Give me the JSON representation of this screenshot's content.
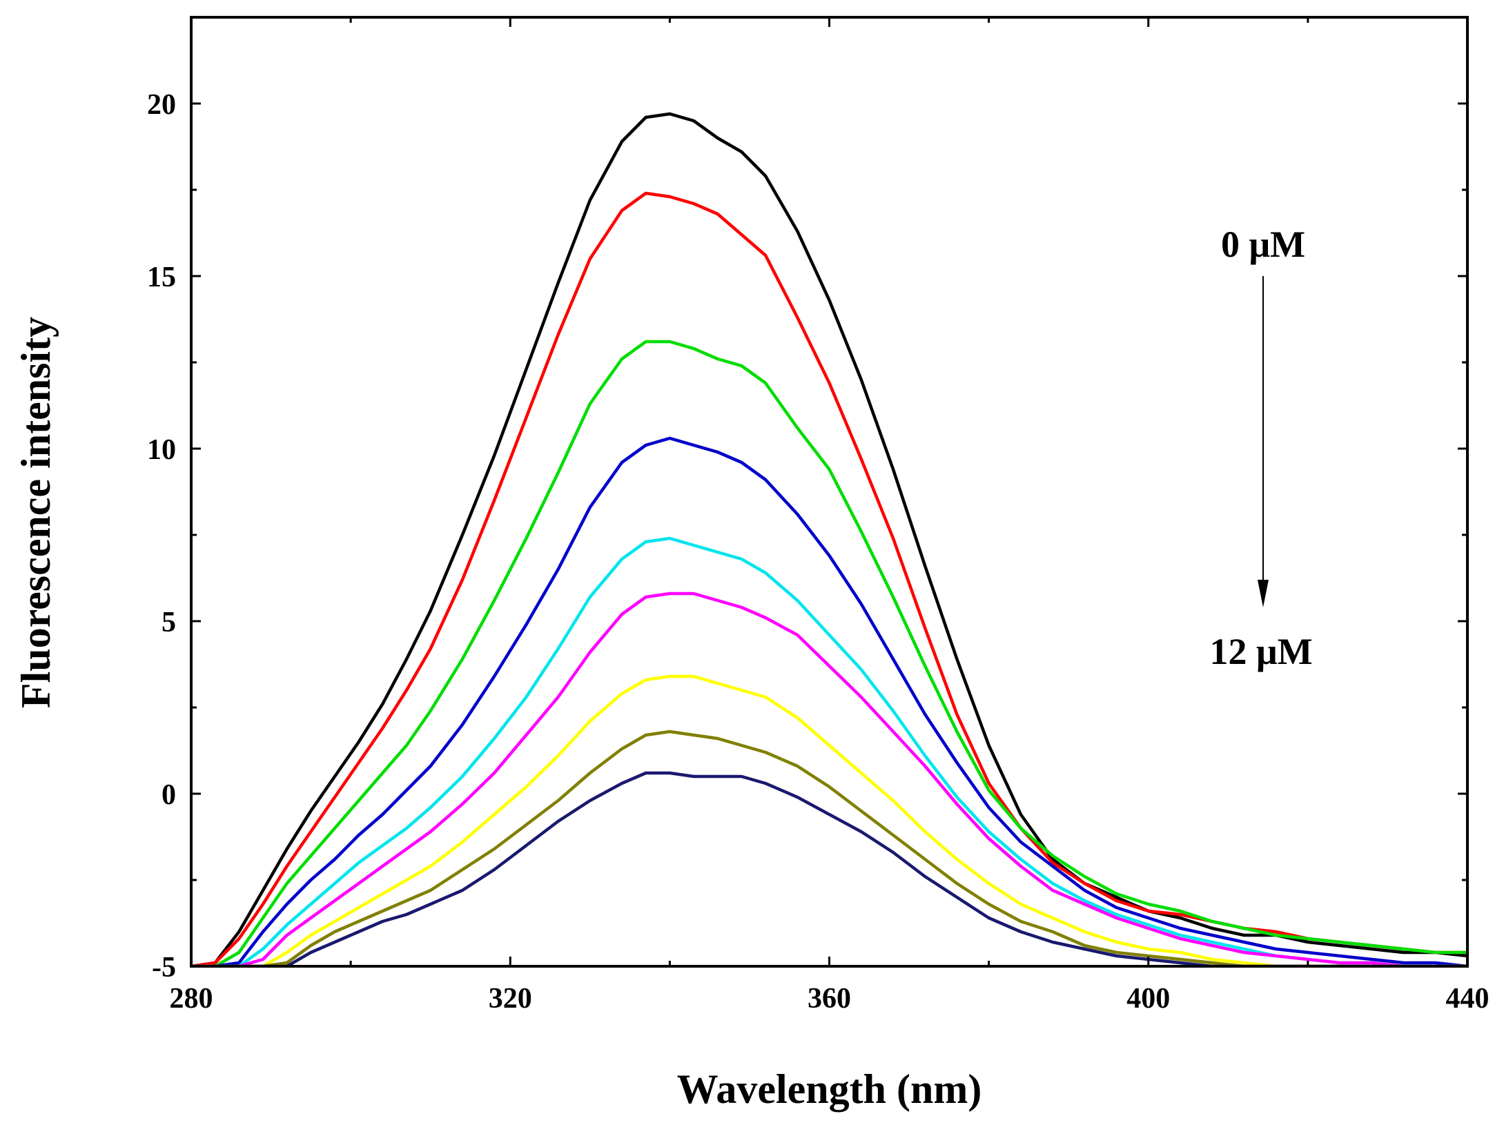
{
  "chart_data": {
    "type": "line",
    "title": "",
    "xlabel": "Wavelength (nm)",
    "ylabel": "Fluorescence intensity",
    "xlim": [
      280,
      440
    ],
    "ylim": [
      -5,
      22.5
    ],
    "x_ticks": [
      280,
      320,
      360,
      400,
      440
    ],
    "x_tick_labels": [
      "280",
      "320",
      "360",
      "400",
      "440"
    ],
    "x_minor_ticks": [
      300,
      340,
      380,
      420
    ],
    "y_ticks": [
      -5,
      0,
      5,
      10,
      15,
      20
    ],
    "y_tick_labels": [
      "-5",
      "0",
      "5",
      "10",
      "15",
      "20"
    ],
    "y_minor_ticks": [
      -2.5,
      2.5,
      7.5,
      12.5,
      17.5
    ],
    "grid": false,
    "legend": "none",
    "annotations": {
      "top_label": "0 μM",
      "bottom_label": "12 μM",
      "arrow": "down"
    },
    "series": [
      {
        "color": "#000000",
        "x": [
          280,
          283,
          286,
          289,
          292,
          295,
          298,
          301,
          304,
          307,
          310,
          314,
          318,
          322,
          326,
          330,
          334,
          337,
          340,
          343,
          346,
          349,
          352,
          356,
          360,
          364,
          368,
          372,
          376,
          380,
          384,
          388,
          392,
          396,
          400,
          404,
          408,
          412,
          416,
          420,
          424,
          428,
          432,
          436,
          440
        ],
        "y": [
          -5,
          -4.9,
          -4.0,
          -2.8,
          -1.6,
          -0.5,
          0.5,
          1.5,
          2.6,
          3.9,
          5.3,
          7.5,
          9.8,
          12.3,
          14.8,
          17.2,
          18.9,
          19.6,
          19.7,
          19.5,
          19.0,
          18.6,
          17.9,
          16.3,
          14.3,
          12.0,
          9.4,
          6.6,
          3.9,
          1.4,
          -0.6,
          -1.9,
          -2.6,
          -3.0,
          -3.4,
          -3.6,
          -3.9,
          -4.1,
          -4.1,
          -4.3,
          -4.4,
          -4.5,
          -4.6,
          -4.6,
          -4.7
        ]
      },
      {
        "color": "#ff0000",
        "x": [
          280,
          283,
          286,
          289,
          292,
          295,
          298,
          301,
          304,
          307,
          310,
          314,
          318,
          322,
          326,
          330,
          334,
          337,
          340,
          343,
          346,
          349,
          352,
          356,
          360,
          364,
          368,
          372,
          376,
          380,
          384,
          388,
          392,
          396,
          400,
          404,
          408,
          412,
          416,
          420,
          424,
          428,
          432,
          436,
          440
        ],
        "y": [
          -5,
          -4.9,
          -4.2,
          -3.2,
          -2.1,
          -1.1,
          -0.1,
          0.9,
          1.9,
          3.0,
          4.2,
          6.2,
          8.5,
          10.9,
          13.3,
          15.5,
          16.9,
          17.4,
          17.3,
          17.1,
          16.8,
          16.2,
          15.6,
          13.8,
          11.9,
          9.7,
          7.4,
          4.8,
          2.3,
          0.3,
          -1.0,
          -2.0,
          -2.6,
          -3.1,
          -3.4,
          -3.5,
          -3.7,
          -3.9,
          -4.0,
          -4.2,
          -4.3,
          -4.4,
          -4.5,
          -4.6,
          -4.6
        ]
      },
      {
        "color": "#00dd00",
        "x": [
          280,
          283,
          286,
          289,
          292,
          295,
          298,
          301,
          304,
          307,
          310,
          314,
          318,
          322,
          326,
          330,
          334,
          337,
          340,
          343,
          346,
          349,
          352,
          356,
          360,
          364,
          368,
          372,
          376,
          380,
          384,
          388,
          392,
          396,
          400,
          404,
          408,
          412,
          416,
          420,
          424,
          428,
          432,
          436,
          440
        ],
        "y": [
          -5,
          -5.0,
          -4.6,
          -3.6,
          -2.6,
          -1.8,
          -1.0,
          -0.2,
          0.6,
          1.4,
          2.4,
          3.9,
          5.6,
          7.4,
          9.3,
          11.3,
          12.6,
          13.1,
          13.1,
          12.9,
          12.6,
          12.4,
          11.9,
          10.6,
          9.4,
          7.6,
          5.7,
          3.7,
          1.8,
          0.1,
          -1.0,
          -1.8,
          -2.4,
          -2.9,
          -3.2,
          -3.4,
          -3.7,
          -3.9,
          -4.1,
          -4.2,
          -4.3,
          -4.4,
          -4.5,
          -4.6,
          -4.6
        ]
      },
      {
        "color": "#0000cc",
        "x": [
          280,
          283,
          286,
          289,
          292,
          295,
          298,
          301,
          304,
          307,
          310,
          314,
          318,
          322,
          326,
          330,
          334,
          337,
          340,
          343,
          346,
          349,
          352,
          356,
          360,
          364,
          368,
          372,
          376,
          380,
          384,
          388,
          392,
          396,
          400,
          404,
          408,
          412,
          416,
          420,
          424,
          428,
          432,
          436,
          440
        ],
        "y": [
          -5,
          -5.0,
          -4.9,
          -4.0,
          -3.2,
          -2.5,
          -1.9,
          -1.2,
          -0.6,
          0.1,
          0.8,
          2.0,
          3.4,
          4.9,
          6.5,
          8.3,
          9.6,
          10.1,
          10.3,
          10.1,
          9.9,
          9.6,
          9.1,
          8.1,
          6.9,
          5.5,
          3.9,
          2.3,
          0.9,
          -0.4,
          -1.4,
          -2.1,
          -2.8,
          -3.3,
          -3.6,
          -3.9,
          -4.1,
          -4.3,
          -4.5,
          -4.6,
          -4.7,
          -4.8,
          -4.9,
          -4.9,
          -5.0
        ]
      },
      {
        "color": "#00e5ee",
        "x": [
          280,
          283,
          286,
          289,
          292,
          295,
          298,
          301,
          304,
          307,
          310,
          314,
          318,
          322,
          326,
          330,
          334,
          337,
          340,
          343,
          346,
          349,
          352,
          356,
          360,
          364,
          368,
          372,
          376,
          380,
          384,
          388,
          392,
          396,
          400,
          404,
          408,
          412,
          416,
          420,
          424,
          428,
          432,
          436,
          440
        ],
        "y": [
          -5,
          -5.0,
          -5.0,
          -4.5,
          -3.8,
          -3.2,
          -2.6,
          -2.0,
          -1.5,
          -1.0,
          -0.4,
          0.5,
          1.6,
          2.8,
          4.2,
          5.7,
          6.8,
          7.3,
          7.4,
          7.2,
          7.0,
          6.8,
          6.4,
          5.6,
          4.6,
          3.6,
          2.4,
          1.1,
          -0.1,
          -1.1,
          -1.9,
          -2.6,
          -3.1,
          -3.5,
          -3.8,
          -4.1,
          -4.3,
          -4.5,
          -4.7,
          -4.8,
          -4.9,
          -4.9,
          -5.0,
          -5.0,
          -5.0
        ]
      },
      {
        "color": "#ff00ff",
        "x": [
          280,
          283,
          286,
          289,
          292,
          295,
          298,
          301,
          304,
          307,
          310,
          314,
          318,
          322,
          326,
          330,
          334,
          337,
          340,
          343,
          346,
          349,
          352,
          356,
          360,
          364,
          368,
          372,
          376,
          380,
          384,
          388,
          392,
          396,
          400,
          404,
          408,
          412,
          416,
          420,
          424,
          428,
          432,
          436,
          440
        ],
        "y": [
          -5,
          -5.0,
          -5.0,
          -4.8,
          -4.1,
          -3.6,
          -3.1,
          -2.6,
          -2.1,
          -1.6,
          -1.1,
          -0.3,
          0.6,
          1.7,
          2.8,
          4.1,
          5.2,
          5.7,
          5.8,
          5.8,
          5.6,
          5.4,
          5.1,
          4.6,
          3.7,
          2.8,
          1.8,
          0.8,
          -0.3,
          -1.3,
          -2.1,
          -2.8,
          -3.2,
          -3.6,
          -3.9,
          -4.2,
          -4.4,
          -4.6,
          -4.7,
          -4.8,
          -4.9,
          -4.9,
          -5.0,
          -5.0,
          -5.0
        ]
      },
      {
        "color": "#ffff00",
        "x": [
          280,
          283,
          286,
          289,
          292,
          295,
          298,
          301,
          304,
          307,
          310,
          314,
          318,
          322,
          326,
          330,
          334,
          337,
          340,
          343,
          346,
          349,
          352,
          356,
          360,
          364,
          368,
          372,
          376,
          380,
          384,
          388,
          392,
          396,
          400,
          404,
          408,
          412,
          416,
          420,
          424,
          428,
          432,
          436,
          440
        ],
        "y": [
          -5,
          -5.0,
          -5.0,
          -5.0,
          -4.6,
          -4.1,
          -3.7,
          -3.3,
          -2.9,
          -2.5,
          -2.1,
          -1.4,
          -0.6,
          0.2,
          1.1,
          2.1,
          2.9,
          3.3,
          3.4,
          3.4,
          3.2,
          3.0,
          2.8,
          2.2,
          1.4,
          0.6,
          -0.2,
          -1.1,
          -1.9,
          -2.6,
          -3.2,
          -3.6,
          -4.0,
          -4.3,
          -4.5,
          -4.6,
          -4.8,
          -4.9,
          -5.0,
          -5.0,
          -5.0,
          -5.0,
          -5.0,
          -5.0,
          -5.0
        ]
      },
      {
        "color": "#808000",
        "x": [
          280,
          283,
          286,
          289,
          292,
          295,
          298,
          301,
          304,
          307,
          310,
          314,
          318,
          322,
          326,
          330,
          334,
          337,
          340,
          343,
          346,
          349,
          352,
          356,
          360,
          364,
          368,
          372,
          376,
          380,
          384,
          388,
          392,
          396,
          400,
          404,
          408,
          412,
          416,
          420,
          424,
          428,
          432,
          436,
          440
        ],
        "y": [
          -5,
          -5.0,
          -5.0,
          -5.0,
          -4.9,
          -4.4,
          -4.0,
          -3.7,
          -3.4,
          -3.1,
          -2.8,
          -2.2,
          -1.6,
          -0.9,
          -0.2,
          0.6,
          1.3,
          1.7,
          1.8,
          1.7,
          1.6,
          1.4,
          1.2,
          0.8,
          0.2,
          -0.5,
          -1.2,
          -1.9,
          -2.6,
          -3.2,
          -3.7,
          -4.0,
          -4.4,
          -4.6,
          -4.7,
          -4.8,
          -4.9,
          -5.0,
          -5.0,
          -5.0,
          -5.0,
          -5.0,
          -5.0,
          -5.0,
          -5.0
        ]
      },
      {
        "color": "#191970",
        "x": [
          280,
          283,
          286,
          289,
          292,
          295,
          298,
          301,
          304,
          307,
          310,
          314,
          318,
          322,
          326,
          330,
          334,
          337,
          340,
          343,
          346,
          349,
          352,
          356,
          360,
          364,
          368,
          372,
          376,
          380,
          384,
          388,
          392,
          396,
          400,
          404,
          408,
          412,
          416,
          420,
          424,
          428,
          432,
          436,
          440
        ],
        "y": [
          -5,
          -5.0,
          -5.0,
          -5.0,
          -5.0,
          -4.6,
          -4.3,
          -4.0,
          -3.7,
          -3.5,
          -3.2,
          -2.8,
          -2.2,
          -1.5,
          -0.8,
          -0.2,
          0.3,
          0.6,
          0.6,
          0.5,
          0.5,
          0.5,
          0.3,
          -0.1,
          -0.6,
          -1.1,
          -1.7,
          -2.4,
          -3.0,
          -3.6,
          -4.0,
          -4.3,
          -4.5,
          -4.7,
          -4.8,
          -4.9,
          -5.0,
          -5.0,
          -5.0,
          -5.0,
          -5.0,
          -5.0,
          -5.0,
          -5.0,
          -5.0
        ]
      }
    ]
  }
}
